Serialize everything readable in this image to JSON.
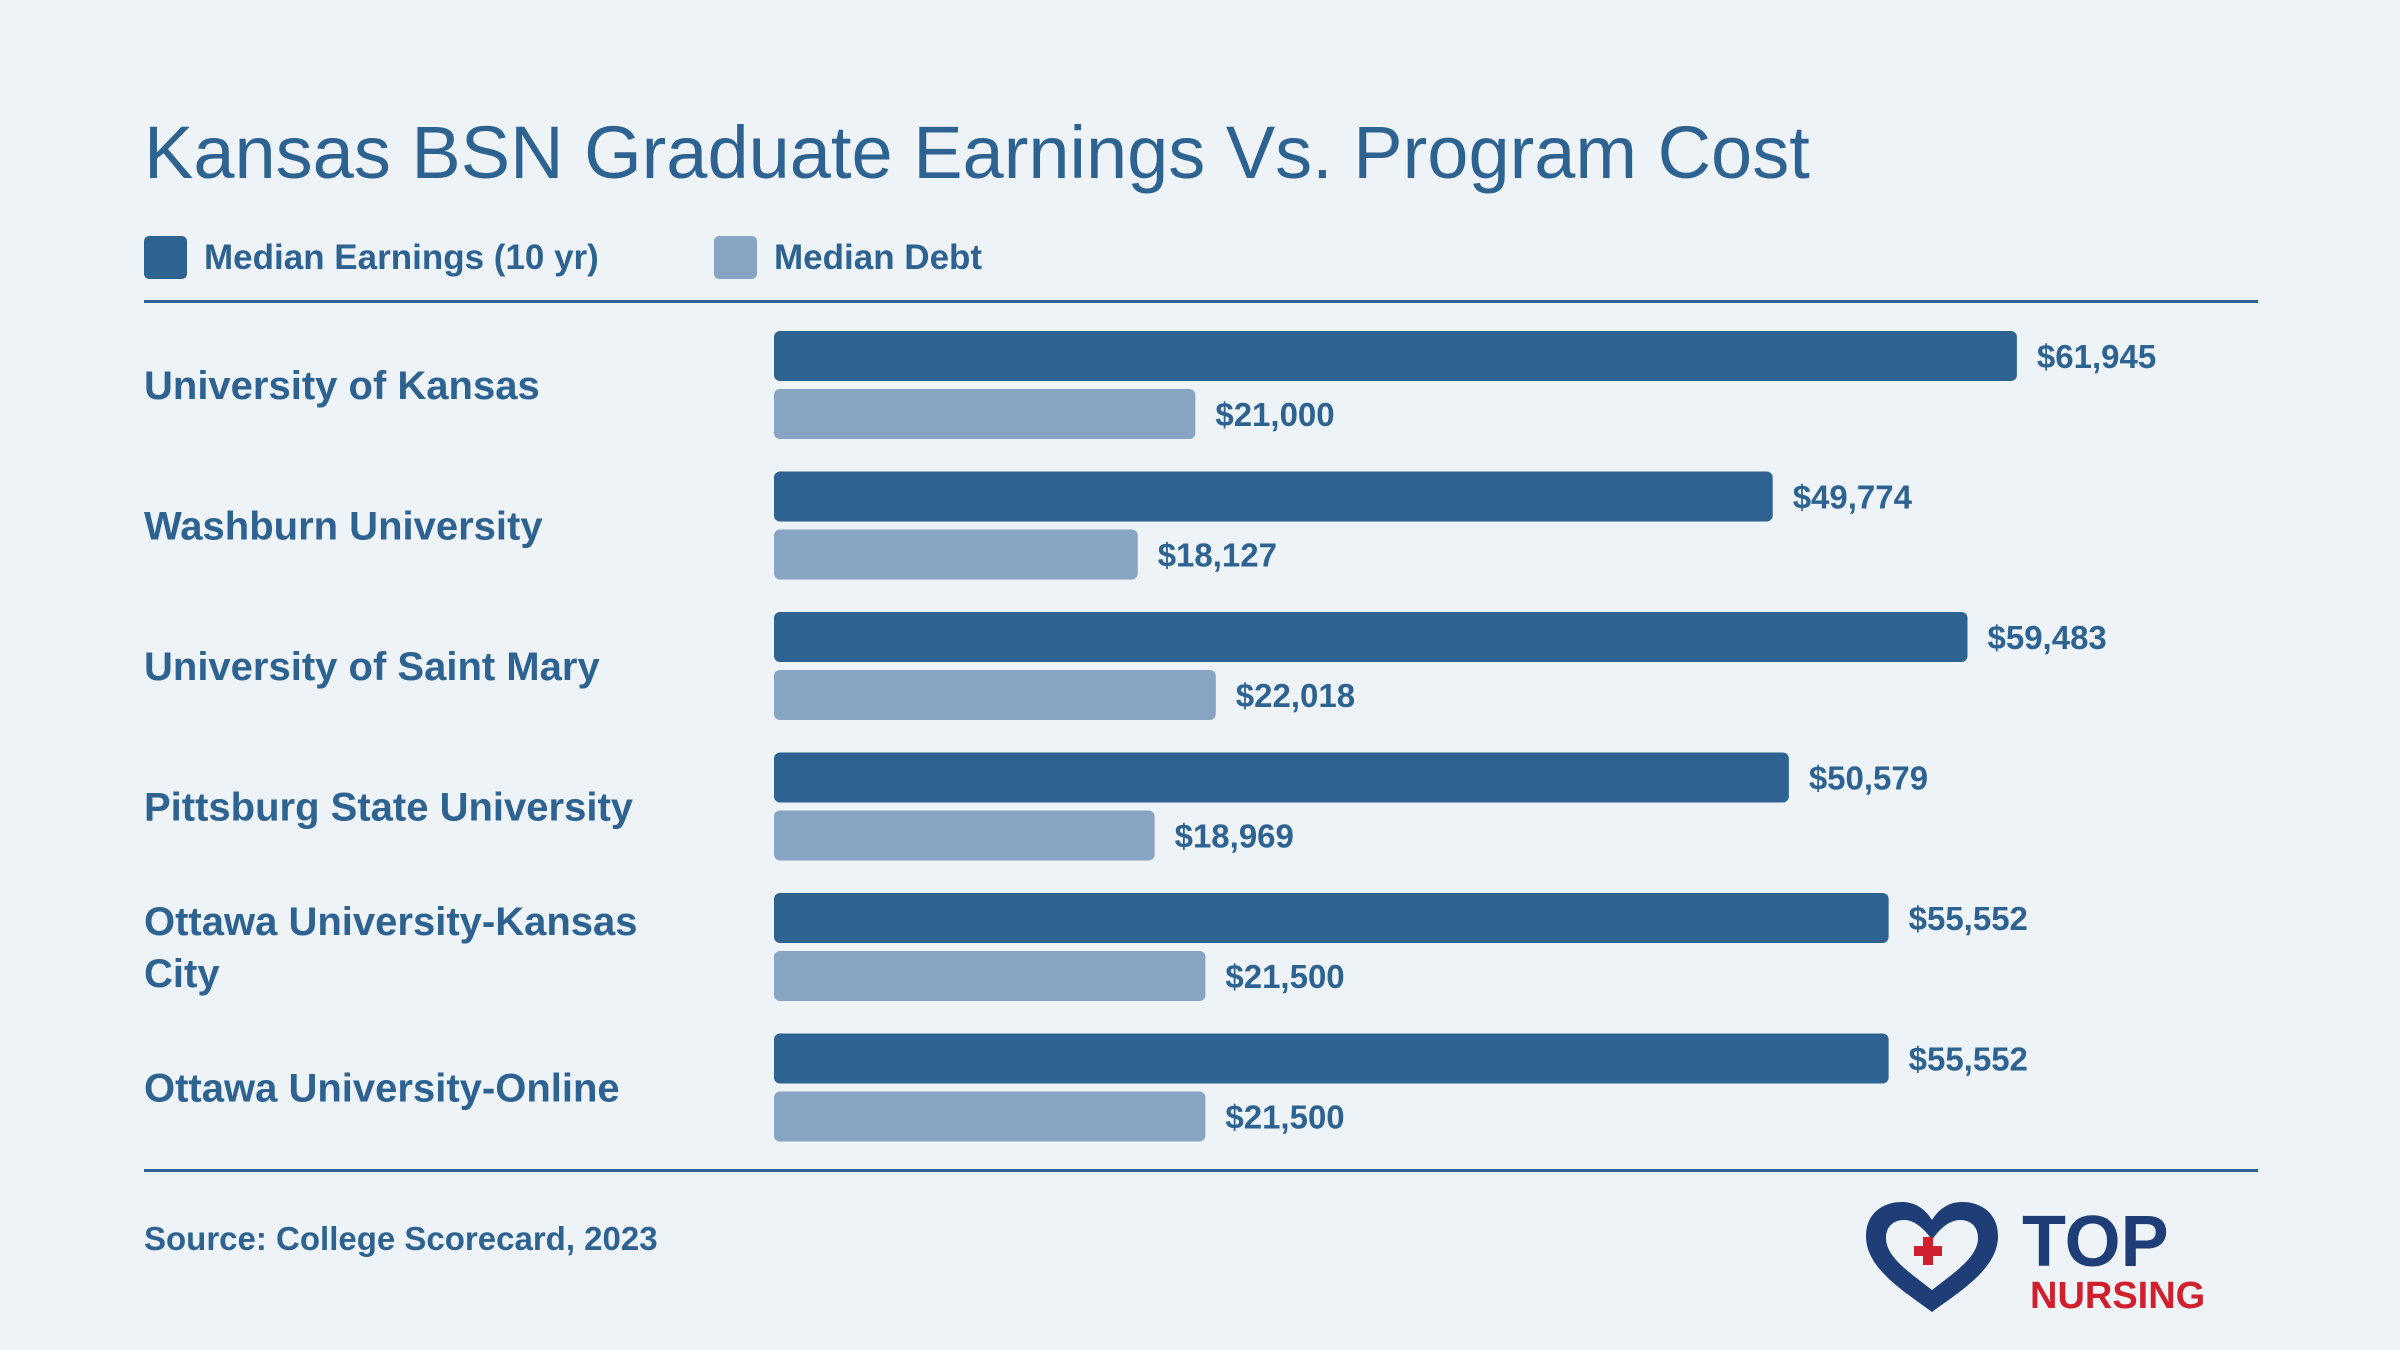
{
  "title": "Kansas BSN Graduate Earnings Vs. Program Cost",
  "source": "Source: College Scorecard, 2023",
  "logo": {
    "text_top": "TOP",
    "text_bottom": "NURSING"
  },
  "colors": {
    "earnings": "#2e6391",
    "debt": "#87a5c2",
    "text": "#2e6391",
    "background": "#edf3f7",
    "logo_red": "#d0202e"
  },
  "chart_data": {
    "type": "bar",
    "orientation": "horizontal",
    "title": "Kansas BSN Graduate Earnings Vs. Program Cost",
    "categories": [
      "University of Kansas",
      "Washburn University",
      "University of Saint Mary",
      "Pittsburg State University",
      "Ottawa University-Kansas City",
      "Ottawa University-Online"
    ],
    "series": [
      {
        "name": "Median Earnings (10 yr)",
        "values": [
          61945,
          49774,
          59483,
          50579,
          55552,
          55552
        ],
        "labels": [
          "$61,945",
          "$49,774",
          "$59,483",
          "$50,579",
          "$55,552",
          "$55,552"
        ]
      },
      {
        "name": "Median Debt",
        "values": [
          21000,
          18127,
          22018,
          18969,
          21500,
          21500
        ],
        "labels": [
          "$21,000",
          "$18,127",
          "$22,018",
          "$18,969",
          "$21,500",
          "$21,500"
        ]
      }
    ],
    "xlim": [
      0,
      62000
    ],
    "legend": "top-left",
    "grid": false
  }
}
